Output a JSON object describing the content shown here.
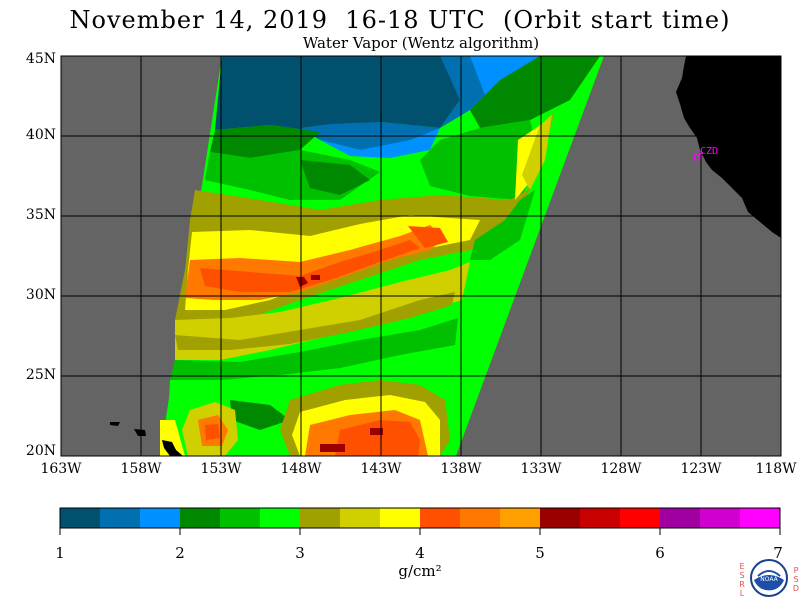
{
  "header": {
    "title": "November 14, 2019  16-18 UTC  (Orbit start time)",
    "subtitle": "Water Vapor (Wentz algorithm)"
  },
  "map": {
    "lat_labels": [
      "45N",
      "40N",
      "35N",
      "30N",
      "25N",
      "20N"
    ],
    "lon_labels": [
      "163W",
      "158W",
      "153W",
      "148W",
      "143W",
      "138W",
      "133W",
      "128W",
      "123W",
      "118W"
    ],
    "station_label": "CZD",
    "colors": {
      "no_data": "#646464",
      "land": "#000000",
      "grid": "#000000",
      "station": "#ff00ff"
    }
  },
  "colorbar": {
    "labels": [
      "1",
      "2",
      "3",
      "4",
      "5",
      "6",
      "7"
    ],
    "colors": [
      "#00506e",
      "#0070b0",
      "#0090ff",
      "#008800",
      "#00c000",
      "#00ff00",
      "#a0a000",
      "#d0d000",
      "#ffff00",
      "#ff5000",
      "#ff7800",
      "#ffa000",
      "#9a0000",
      "#c80000",
      "#ff0000",
      "#a000a0",
      "#d000d0",
      "#ff00ff"
    ],
    "unit": "g/cm²"
  },
  "logo": {
    "text": "NOAA",
    "left_letters": [
      "E",
      "S",
      "R",
      "L"
    ],
    "right_letters": [
      "P",
      "S",
      "D"
    ]
  }
}
